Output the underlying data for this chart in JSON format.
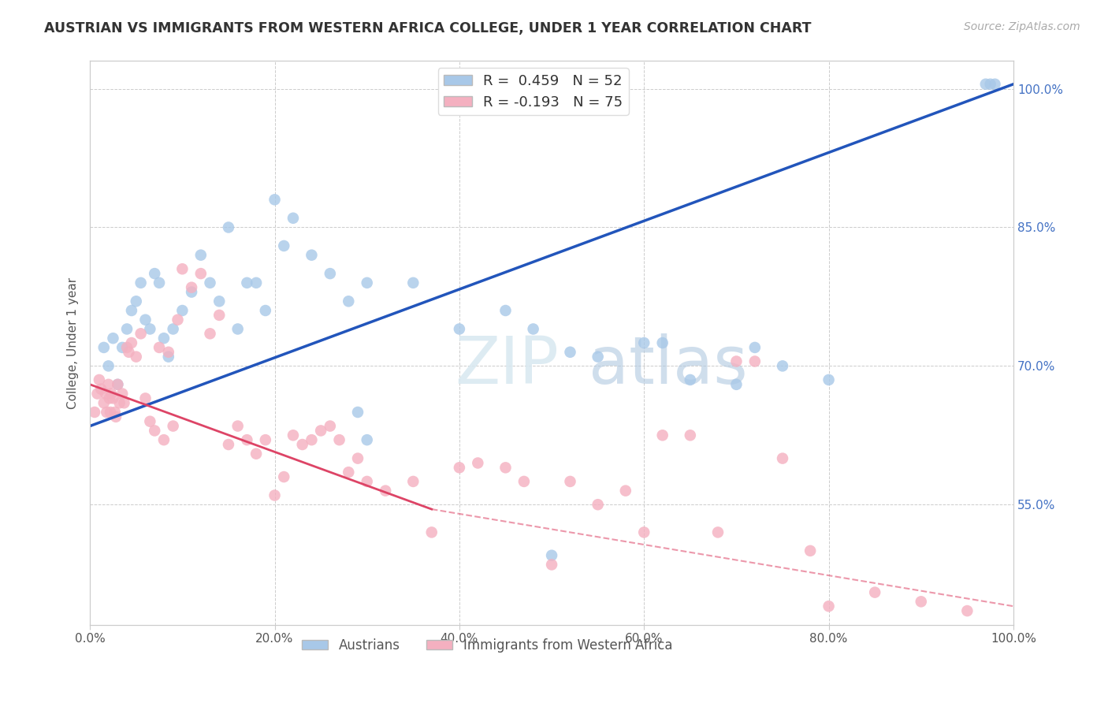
{
  "title": "AUSTRIAN VS IMMIGRANTS FROM WESTERN AFRICA COLLEGE, UNDER 1 YEAR CORRELATION CHART",
  "source": "Source: ZipAtlas.com",
  "ylabel": "College, Under 1 year",
  "xlim": [
    0.0,
    100.0
  ],
  "ylim": [
    42.0,
    103.0
  ],
  "yticks_right": [
    55.0,
    70.0,
    85.0,
    100.0
  ],
  "xticks": [
    0.0,
    20.0,
    40.0,
    60.0,
    80.0,
    100.0
  ],
  "blue_R": 0.459,
  "blue_N": 52,
  "pink_R": -0.193,
  "pink_N": 75,
  "legend_label_blue": "Austrians",
  "legend_label_pink": "Immigrants from Western Africa",
  "blue_color": "#a8c8e8",
  "pink_color": "#f4b0c0",
  "blue_line_color": "#2255bb",
  "pink_line_color": "#dd4466",
  "background_color": "#ffffff",
  "grid_color": "#cccccc",
  "blue_line_start_x": 0.0,
  "blue_line_start_y": 63.5,
  "blue_line_end_x": 100.0,
  "blue_line_end_y": 100.5,
  "pink_line_start_x": 0.0,
  "pink_line_start_y": 68.0,
  "pink_line_solid_end_x": 37.0,
  "pink_line_solid_end_y": 54.5,
  "pink_line_dashed_end_x": 100.0,
  "pink_line_dashed_end_y": 44.0,
  "blue_x": [
    1.5,
    2.0,
    2.5,
    3.0,
    3.5,
    4.0,
    4.5,
    5.0,
    5.5,
    6.0,
    6.5,
    7.0,
    7.5,
    8.0,
    8.5,
    9.0,
    10.0,
    11.0,
    12.0,
    13.0,
    14.0,
    15.0,
    16.0,
    17.0,
    18.0,
    19.0,
    20.0,
    21.0,
    22.0,
    24.0,
    26.0,
    28.0,
    30.0,
    35.0,
    40.0,
    45.0,
    48.0,
    50.0,
    52.0,
    55.0,
    60.0,
    62.0,
    65.0,
    70.0,
    72.0,
    75.0,
    80.0,
    97.0,
    97.5,
    98.0,
    29.0,
    30.0
  ],
  "blue_y": [
    72.0,
    70.0,
    73.0,
    68.0,
    72.0,
    74.0,
    76.0,
    77.0,
    79.0,
    75.0,
    74.0,
    80.0,
    79.0,
    73.0,
    71.0,
    74.0,
    76.0,
    78.0,
    82.0,
    79.0,
    77.0,
    85.0,
    74.0,
    79.0,
    79.0,
    76.0,
    88.0,
    83.0,
    86.0,
    82.0,
    80.0,
    77.0,
    79.0,
    79.0,
    74.0,
    76.0,
    74.0,
    49.5,
    71.5,
    71.0,
    72.5,
    72.5,
    68.5,
    68.0,
    72.0,
    70.0,
    68.5,
    100.5,
    100.5,
    100.5,
    65.0,
    62.0
  ],
  "pink_x": [
    0.5,
    0.8,
    1.0,
    1.2,
    1.5,
    1.7,
    1.8,
    2.0,
    2.1,
    2.2,
    2.3,
    2.5,
    2.7,
    2.8,
    3.0,
    3.2,
    3.5,
    3.7,
    4.0,
    4.2,
    4.5,
    5.0,
    5.5,
    6.0,
    6.5,
    7.0,
    7.5,
    8.0,
    8.5,
    9.0,
    9.5,
    10.0,
    11.0,
    12.0,
    13.0,
    14.0,
    15.0,
    16.0,
    17.0,
    18.0,
    19.0,
    20.0,
    21.0,
    22.0,
    23.0,
    24.0,
    25.0,
    26.0,
    27.0,
    28.0,
    29.0,
    30.0,
    32.0,
    35.0,
    37.0,
    40.0,
    42.0,
    45.0,
    47.0,
    50.0,
    52.0,
    55.0,
    58.0,
    60.0,
    62.0,
    65.0,
    68.0,
    70.0,
    72.0,
    75.0,
    78.0,
    80.0,
    85.0,
    90.0,
    95.0
  ],
  "pink_y": [
    65.0,
    67.0,
    68.5,
    67.5,
    66.0,
    67.0,
    65.0,
    68.0,
    66.5,
    65.0,
    67.0,
    66.5,
    65.0,
    64.5,
    68.0,
    66.0,
    67.0,
    66.0,
    72.0,
    71.5,
    72.5,
    71.0,
    73.5,
    66.5,
    64.0,
    63.0,
    72.0,
    62.0,
    71.5,
    63.5,
    75.0,
    80.5,
    78.5,
    80.0,
    73.5,
    75.5,
    61.5,
    63.5,
    62.0,
    60.5,
    62.0,
    56.0,
    58.0,
    62.5,
    61.5,
    62.0,
    63.0,
    63.5,
    62.0,
    58.5,
    60.0,
    57.5,
    56.5,
    57.5,
    52.0,
    59.0,
    59.5,
    59.0,
    57.5,
    48.5,
    57.5,
    55.0,
    56.5,
    52.0,
    62.5,
    62.5,
    52.0,
    70.5,
    70.5,
    60.0,
    50.0,
    44.0,
    45.5,
    44.5,
    43.5
  ]
}
